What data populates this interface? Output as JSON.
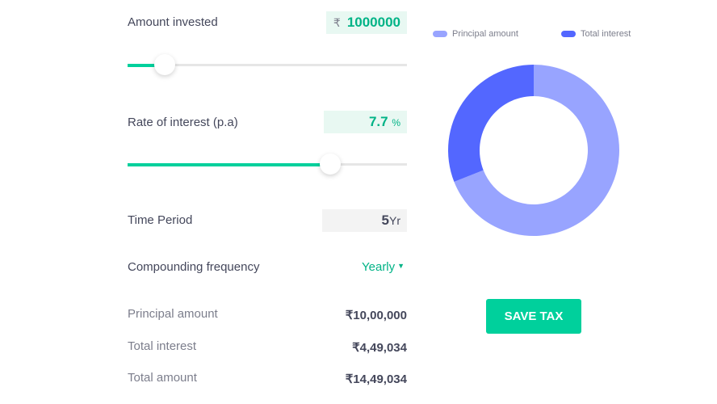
{
  "amount": {
    "label": "Amount invested",
    "currency": "₹",
    "value": "1000000",
    "slider_fraction": 0.133
  },
  "rate": {
    "label": "Rate of interest (p.a)",
    "value": "7.7",
    "unit": "%",
    "slider_fraction": 0.725
  },
  "period": {
    "label": "Time Period",
    "value": "5",
    "unit": "Yr"
  },
  "frequency": {
    "label": "Compounding frequency",
    "value": "Yearly"
  },
  "summary": [
    {
      "label": "Principal amount",
      "value": "₹10,00,000"
    },
    {
      "label": "Total interest",
      "value": "₹4,49,034"
    },
    {
      "label": "Total amount",
      "value": "₹14,49,034"
    }
  ],
  "chart_data": {
    "type": "pie",
    "donut": true,
    "series": [
      {
        "name": "Principal amount",
        "value": 1000000,
        "color": "#98a4ff"
      },
      {
        "name": "Total interest",
        "value": 449034,
        "color": "#5367ff"
      }
    ]
  },
  "save_tax_label": "SAVE TAX",
  "colors": {
    "accent": "#00d09c"
  }
}
